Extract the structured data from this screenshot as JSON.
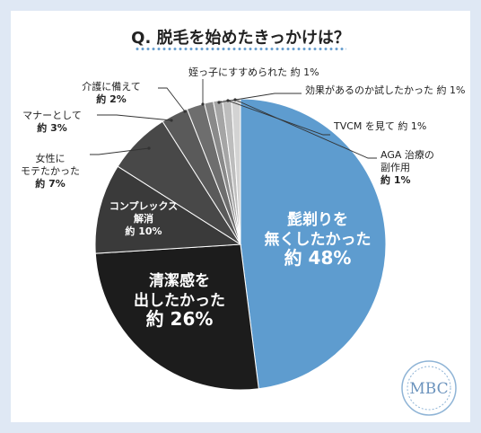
{
  "title": "Q. 脱毛を始めたきっかけは？",
  "logo_text": "MBC",
  "colors": {
    "accent": "#5e9ccf",
    "frame": "#dfe8f4",
    "slices": [
      "#5e9ccf",
      "#1c1c1c",
      "#3a3a3a",
      "#484848",
      "#5a5a5a",
      "#6e6e6e",
      "#8a8a8a",
      "#a5a5a5",
      "#bdbdbd",
      "#d3d3d3"
    ]
  },
  "chart_data": {
    "type": "pie",
    "start": "12 o'clock, clockwise",
    "slices": [
      {
        "label_lines": [
          "髭剃りを",
          "無くしたかった"
        ],
        "value_text": "約 48%",
        "value": 48
      },
      {
        "label_lines": [
          "清潔感を",
          "出したかった"
        ],
        "value_text": "約 26%",
        "value": 26
      },
      {
        "label_lines": [
          "コンプレックス",
          "解消"
        ],
        "value_text": "約 10%",
        "value": 10
      },
      {
        "label_lines": [
          "女性に",
          "モテたかった"
        ],
        "value_text": "約 7%",
        "value": 7
      },
      {
        "label_lines": [
          "マナーとして"
        ],
        "value_text": "約 3%",
        "value": 3
      },
      {
        "label_lines": [
          "介護に備えて"
        ],
        "value_text": "約 2%",
        "value": 2
      },
      {
        "label_lines": [
          "姪っ子にすすめられた"
        ],
        "value_text": "約 1%",
        "value": 1
      },
      {
        "label_lines": [
          "効果があるのか試したかった"
        ],
        "value_text": "約 1%",
        "value": 1
      },
      {
        "label_lines": [
          "TVCM を見て"
        ],
        "value_text": "約 1%",
        "value": 1
      },
      {
        "label_lines": [
          "AGA 治療の",
          "副作用"
        ],
        "value_text": "約 1%",
        "value": 1
      }
    ]
  }
}
